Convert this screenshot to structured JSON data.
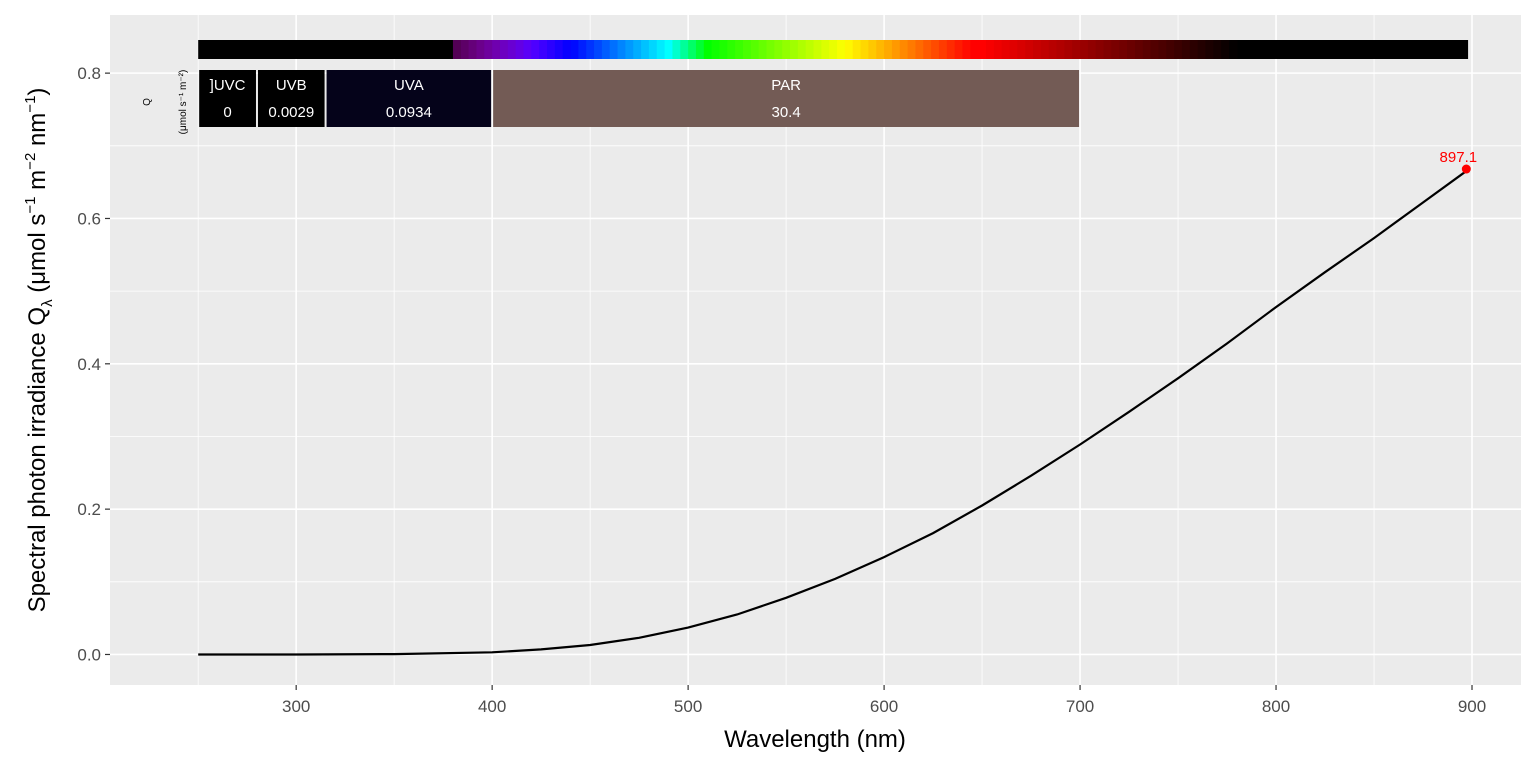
{
  "chart_data": {
    "type": "line",
    "xlabel": "Wavelength (nm)",
    "ylabel": {
      "main": "Spectral  photon  irradiance  Q",
      "sub": "λ",
      "unit_open": "  (μmol s",
      "exp1": "−1",
      "unit_mid": "  m",
      "exp2": "−2",
      "unit_mid2": " nm",
      "exp3": "−1",
      "unit_close": ")"
    },
    "xlim": [
      205,
      925
    ],
    "ylim": [
      -0.042,
      0.88
    ],
    "x_ticks": [
      300,
      400,
      500,
      600,
      700,
      800,
      900
    ],
    "x_tick_labels": [
      "300",
      "400",
      "500",
      "600",
      "700",
      "800",
      "900"
    ],
    "y_ticks": [
      0.0,
      0.2,
      0.4,
      0.6,
      0.8
    ],
    "y_tick_labels": [
      "0.0",
      "0.2",
      "0.4",
      "0.6",
      "0.8"
    ],
    "grid": true,
    "series": [
      {
        "x": [
          250,
          300,
          350,
          400,
          425,
          450,
          475,
          500,
          525,
          550,
          575,
          600,
          625,
          650,
          675,
          700,
          725,
          750,
          775,
          800,
          825,
          850,
          875,
          897
        ],
        "y": [
          0.0,
          0.0,
          0.0005,
          0.003,
          0.007,
          0.013,
          0.023,
          0.037,
          0.055,
          0.078,
          0.104,
          0.134,
          0.167,
          0.205,
          0.246,
          0.289,
          0.334,
          0.38,
          0.428,
          0.478,
          0.526,
          0.573,
          0.622,
          0.665
        ]
      }
    ],
    "peak": {
      "x": 897.1,
      "y": 0.668,
      "label": "897.1",
      "color": "#ff0000"
    },
    "waveband_annotation": {
      "q_label": "Q",
      "q_unit": "(μmol s⁻¹ m⁻²)",
      "bands": [
        {
          "name": "]UVC",
          "value": "0",
          "from": 250,
          "to": 280,
          "color": "#000000"
        },
        {
          "name": "UVB",
          "value": "0.0029",
          "from": 280,
          "to": 315,
          "color": "#000000"
        },
        {
          "name": "UVA",
          "value": "0.0934",
          "from": 315,
          "to": 400,
          "color": "#05031a"
        },
        {
          "name": "PAR",
          "value": "30.4",
          "from": 400,
          "to": 700,
          "color": "#735b55"
        }
      ],
      "spectrum_bar": {
        "from": 250,
        "to": 898
      }
    },
    "colors": {
      "panel": "#ebebeb",
      "grid": "#ffffff",
      "line": "#000000"
    }
  }
}
